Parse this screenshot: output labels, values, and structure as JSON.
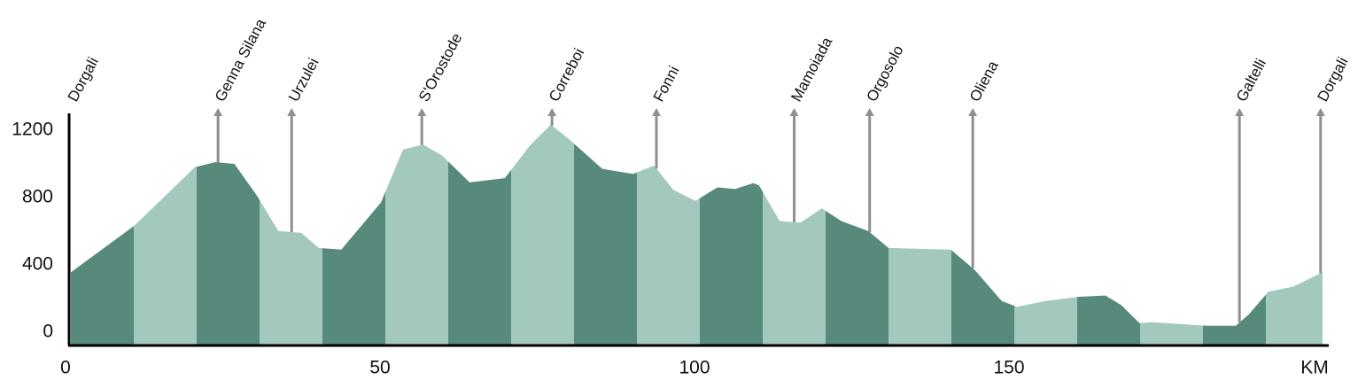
{
  "chart_data": {
    "type": "area",
    "x": [
      0,
      10,
      14.6,
      19.7,
      23,
      26,
      29.6,
      33,
      36.6,
      39.4,
      43,
      49.3,
      52.8,
      56,
      59,
      63.4,
      69,
      73,
      76.3,
      79,
      84.5,
      89.4,
      92.7,
      95.8,
      99.3,
      102.8,
      105.6,
      108.5,
      109.4,
      112.7,
      116,
      119.4,
      122.5,
      126.8,
      130,
      139.9,
      143.7,
      148,
      150.4,
      155,
      160.3,
      164.5,
      167,
      169.9,
      172,
      180.6,
      185.2,
      187.3,
      190.4,
      194.4,
      199
    ],
    "values": [
      355,
      630,
      795,
      980,
      1010,
      1000,
      810,
      600,
      590,
      500,
      490,
      770,
      1085,
      1115,
      1050,
      890,
      915,
      1110,
      1233,
      1153,
      970,
      940,
      990,
      845,
      780,
      860,
      850,
      885,
      873,
      660,
      650,
      735,
      660,
      600,
      500,
      490,
      370,
      185,
      150,
      185,
      210,
      217,
      160,
      53,
      58,
      37,
      37,
      105,
      240,
      270,
      355
    ],
    "colors": [
      "#578a7c",
      "#a3c9bf"
    ],
    "band": 10,
    "xlim": [
      0,
      200
    ],
    "ylim": [
      -80,
      1300
    ],
    "xticks": [
      0,
      50,
      100,
      150
    ],
    "yticks": [
      0,
      400,
      800,
      1200
    ],
    "x_label": "KM",
    "marker_color": "#8f8f8f",
    "markers": [
      {
        "label": "Dorgali",
        "x": 0
      },
      {
        "label": "Genna Silana",
        "x": 23.4
      },
      {
        "label": "Urzulei",
        "x": 35.1
      },
      {
        "label": "S'Orostode",
        "x": 55.8
      },
      {
        "label": "Correboi",
        "x": 76.5
      },
      {
        "label": "Fonni",
        "x": 93.1
      },
      {
        "label": "Mamoiada",
        "x": 115
      },
      {
        "label": "Orgosolo",
        "x": 127
      },
      {
        "label": "Oliena",
        "x": 143.4
      },
      {
        "label": "Galtelli",
        "x": 185.8
      },
      {
        "label": "Dorgali",
        "x": 198.7
      }
    ]
  }
}
